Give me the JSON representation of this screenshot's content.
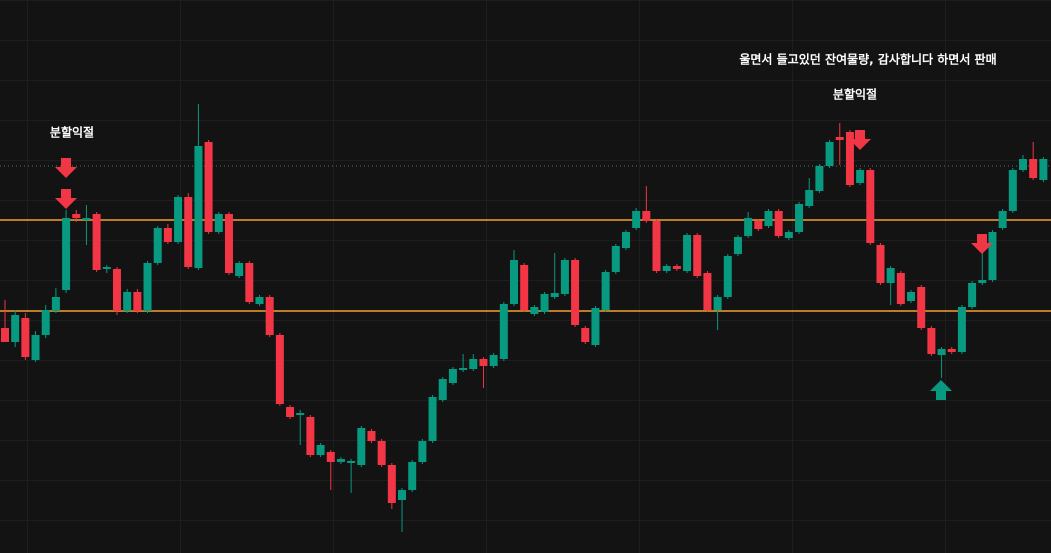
{
  "chart_data": {
    "type": "candlestick",
    "ylim": [
      0,
      553
    ],
    "up_color": "#089981",
    "down_color": "#f23645",
    "open": [
      225,
      211,
      235,
      193,
      218,
      242,
      263,
      339,
      333,
      339,
      284,
      284,
      242,
      261,
      242,
      290,
      325,
      311,
      356,
      285,
      411,
      321,
      339,
      277,
      290,
      249,
      256,
      218,
      146,
      138,
      136,
      98,
      101,
      91,
      90,
      88,
      122,
      112,
      88,
      53,
      63,
      91,
      112,
      153,
      170,
      183,
      184,
      194,
      187,
      194,
      249,
      288,
      239,
      241,
      256,
      259,
      293,
      225,
      208,
      243,
      281,
      305,
      325,
      342,
      332,
      282,
      287,
      282,
      318,
      280,
      243,
      256,
      299,
      317,
      332,
      327,
      342,
      315,
      321,
      347,
      362,
      387,
      416,
      421,
      370,
      383,
      308,
      270,
      280,
      252,
      266,
      225,
      198,
      204,
      201,
      246,
      270,
      273,
      325,
      342,
      383,
      394,
      373
    ],
    "high": [
      253,
      243,
      240,
      222,
      248,
      265,
      343,
      343,
      348,
      341,
      288,
      286,
      264,
      264,
      292,
      327,
      329,
      358,
      360,
      449,
      413,
      341,
      341,
      292,
      292,
      258,
      258,
      220,
      148,
      143,
      138,
      110,
      103,
      96,
      94,
      127,
      124,
      114,
      90,
      65,
      93,
      114,
      158,
      176,
      186,
      199,
      199,
      196,
      200,
      251,
      303,
      290,
      248,
      261,
      300,
      295,
      295,
      227,
      247,
      283,
      309,
      323,
      345,
      367,
      334,
      289,
      289,
      320,
      320,
      282,
      258,
      299,
      318,
      341,
      334,
      344,
      344,
      323,
      351,
      375,
      389,
      413,
      430,
      423,
      385,
      385,
      310,
      287,
      282,
      263,
      268,
      227,
      206,
      206,
      248,
      272,
      300,
      323,
      344,
      385,
      398,
      411,
      396
    ],
    "low": [
      211,
      206,
      193,
      191,
      215,
      240,
      260,
      331,
      308,
      281,
      280,
      238,
      240,
      240,
      240,
      288,
      309,
      309,
      284,
      283,
      319,
      319,
      278,
      275,
      249,
      247,
      216,
      147,
      134,
      108,
      96,
      96,
      63,
      89,
      60,
      86,
      110,
      86,
      44,
      21,
      61,
      89,
      110,
      151,
      168,
      181,
      182,
      165,
      185,
      192,
      247,
      241,
      237,
      239,
      254,
      257,
      226,
      209,
      206,
      241,
      279,
      303,
      323,
      330,
      280,
      280,
      282,
      280,
      275,
      241,
      223,
      254,
      297,
      315,
      322,
      325,
      315,
      313,
      319,
      345,
      360,
      385,
      388,
      366,
      368,
      308,
      268,
      248,
      247,
      250,
      223,
      197,
      175,
      199,
      199,
      244,
      268,
      271,
      323,
      340,
      381,
      373,
      371
    ],
    "close": [
      211,
      238,
      196,
      218,
      243,
      256,
      335,
      335,
      335,
      283,
      286,
      242,
      261,
      242,
      290,
      325,
      311,
      356,
      286,
      407,
      321,
      339,
      280,
      290,
      251,
      256,
      218,
      149,
      136,
      140,
      98,
      108,
      91,
      94,
      92,
      125,
      112,
      88,
      50,
      63,
      91,
      112,
      156,
      174,
      184,
      185,
      194,
      187,
      198,
      249,
      293,
      243,
      246,
      259,
      260,
      293,
      228,
      211,
      245,
      281,
      307,
      321,
      342,
      332,
      282,
      287,
      284,
      318,
      277,
      243,
      256,
      297,
      316,
      335,
      324,
      342,
      317,
      321,
      349,
      363,
      387,
      411,
      413,
      368,
      383,
      310,
      270,
      285,
      249,
      261,
      225,
      199,
      204,
      201,
      246,
      270,
      273,
      321,
      342,
      383,
      394,
      375,
      394
    ],
    "levels": [
      333,
      242
    ],
    "reference_level": 387,
    "annotations": [
      "분할익절",
      "분할익절",
      "울면서 들고있던 잔여물량, 감사합니다 하면서 판매"
    ]
  }
}
